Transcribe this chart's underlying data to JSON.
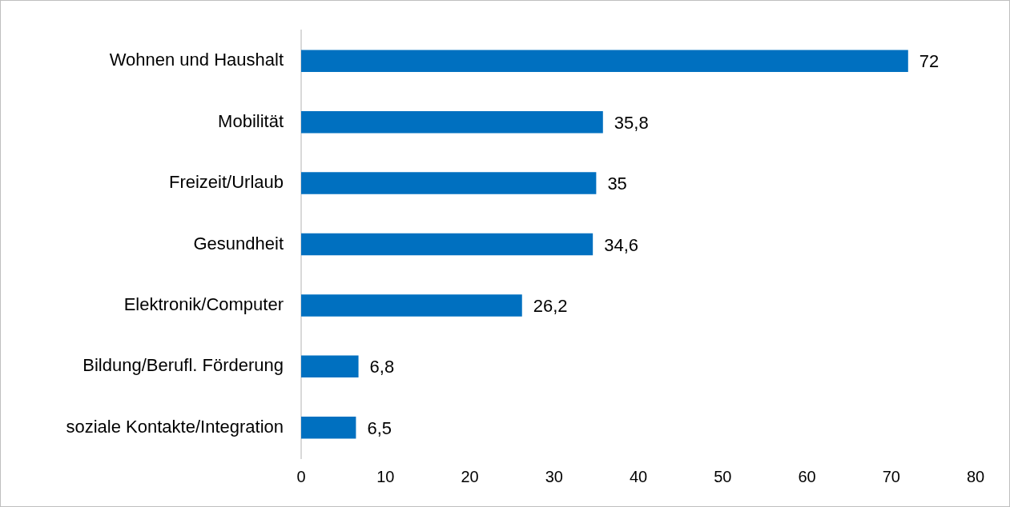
{
  "chart_data": {
    "type": "bar",
    "orientation": "horizontal",
    "categories": [
      "Wohnen und Haushalt",
      "Mobilität",
      "Freizeit/Urlaub",
      "Gesundheit",
      "Elektronik/Computer",
      "Bildung/Berufl. Förderung",
      "soziale Kontakte/Integration"
    ],
    "values": [
      72,
      35.8,
      35,
      34.6,
      26.2,
      6.8,
      6.5
    ],
    "value_labels": [
      "72",
      "35,8",
      "35",
      "34,6",
      "26,2",
      "6,8",
      "6,5"
    ],
    "color": "#0070c0",
    "xlim": [
      0,
      80
    ],
    "xticks": [
      0,
      10,
      20,
      30,
      40,
      50,
      60,
      70,
      80
    ],
    "grid": false,
    "legend": false
  }
}
